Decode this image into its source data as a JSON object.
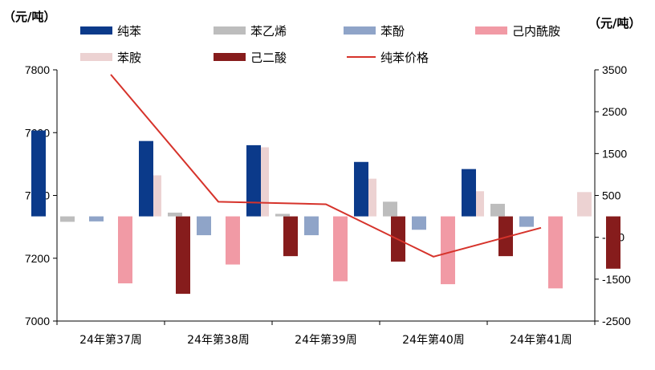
{
  "chart_data": {
    "type": "bar",
    "title": "",
    "left_axis": {
      "unit_label": "（元/吨）",
      "ylim": [
        7000,
        7800
      ],
      "ticks": [
        7000,
        7200,
        7400,
        7600,
        7800
      ]
    },
    "right_axis": {
      "unit_label": "（元/吨）",
      "ylim": [
        -2500,
        3500
      ],
      "ticks": [
        -2500,
        -1500,
        -500,
        500,
        1500,
        2500,
        3500
      ]
    },
    "bar_baseline": 0,
    "categories": [
      "24年第37周",
      "24年第38周",
      "24年第39周",
      "24年第40周",
      "24年第41周"
    ],
    "series": [
      {
        "name": "纯苯",
        "type": "bar",
        "axis": "right",
        "color": "#0b3a8a",
        "values": [
          2050,
          1800,
          1700,
          1300,
          1130
        ]
      },
      {
        "name": "苯乙烯",
        "type": "bar",
        "axis": "right",
        "color": "#bdbdbd",
        "values": [
          -130,
          90,
          60,
          350,
          300
        ]
      },
      {
        "name": "苯酚",
        "type": "bar",
        "axis": "right",
        "color": "#8fa4c8",
        "values": [
          -120,
          -450,
          -450,
          -320,
          -250
        ]
      },
      {
        "name": "己内酰胺",
        "type": "bar",
        "axis": "right",
        "color": "#f19aa5",
        "values": [
          -1600,
          -1150,
          -1550,
          -1620,
          -1720
        ]
      },
      {
        "name": "苯胺",
        "type": "bar",
        "axis": "right",
        "color": "#ecd2d2",
        "values": [
          980,
          1650,
          900,
          600,
          580
        ]
      },
      {
        "name": "己二酸",
        "type": "bar",
        "axis": "right",
        "color": "#861c1c",
        "values": [
          -1850,
          -950,
          -1080,
          -950,
          -1250
        ]
      },
      {
        "name": "纯苯价格",
        "type": "line",
        "axis": "left",
        "color": "#d6332b",
        "values": [
          7785,
          7380,
          7372,
          7205,
          7297
        ]
      }
    ],
    "legend_position": "top",
    "grid": false
  }
}
